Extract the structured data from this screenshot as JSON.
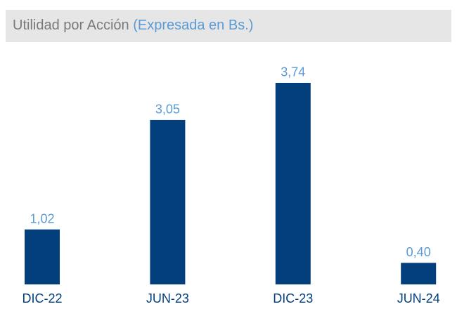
{
  "chart_data": {
    "type": "bar",
    "title": "Utilidad por Acción",
    "subtitle": "(Expresada en Bs.)",
    "categories": [
      "DIC-22",
      "JUN-23",
      "DIC-23",
      "JUN-24"
    ],
    "values": [
      1.02,
      3.05,
      3.74,
      0.4
    ],
    "value_labels": [
      "1,02",
      "3,05",
      "3,74",
      "0,40"
    ],
    "color": "#023f7c",
    "ylim": [
      0,
      4
    ]
  }
}
